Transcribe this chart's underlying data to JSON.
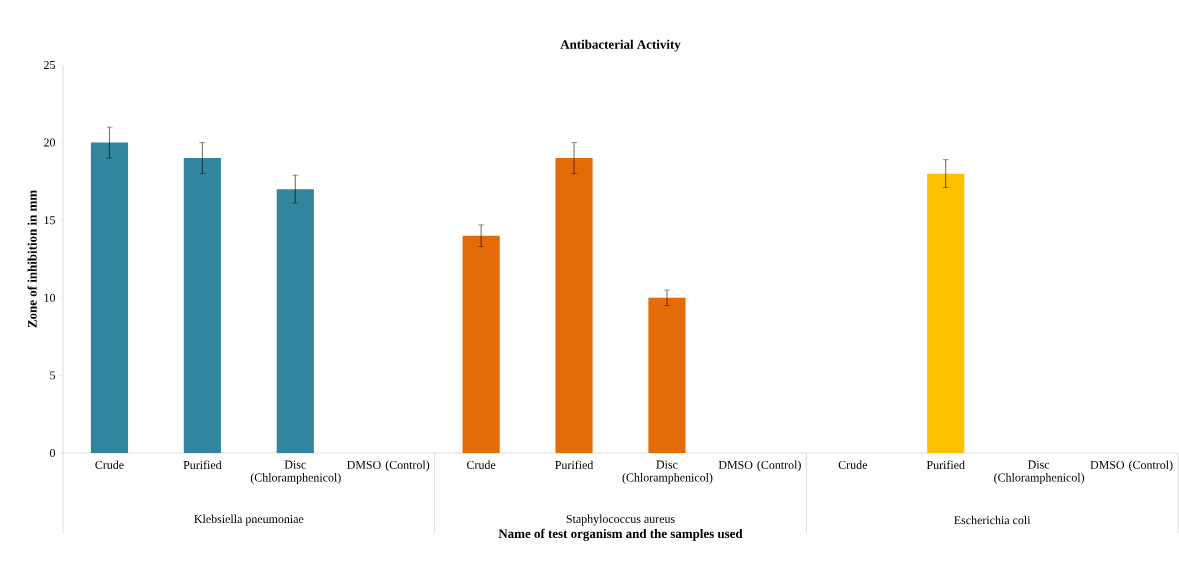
{
  "chart_data": {
    "type": "bar",
    "title": "Antibacterial Activity",
    "xlabel": "Name of test organism and the samples used",
    "ylabel": "Zone of inhibition in mm",
    "categories": [
      "Crude",
      "Purified",
      "Disc (Chloramphenicol)",
      "DMSO (Control)",
      "Crude",
      "Purified",
      "Disc (Chloramphenicol)",
      "DMSO (Control)",
      "Crude",
      "Purified",
      "Disc (Chloramphenicol)",
      "DMSO (Control)"
    ],
    "values": [
      20,
      19,
      17,
      null,
      14,
      19,
      10,
      null,
      null,
      18,
      null,
      null
    ],
    "errors": [
      1,
      1,
      0.9,
      null,
      0.7,
      1,
      0.5,
      null,
      null,
      0.9,
      null,
      null
    ],
    "colors": [
      "#31859c",
      "#31859c",
      "#31859c",
      "#31859c",
      "#e36c09",
      "#e36c09",
      "#e36c09",
      "#e36c09",
      "#ffc000",
      "#ffc000",
      "#ffc000",
      "#ffc000"
    ],
    "ylim": [
      0,
      25
    ],
    "yticks": [
      0,
      5,
      10,
      15,
      20,
      25
    ],
    "grid": false,
    "annotations": [
      "Klebsiella pneumoniae",
      "Staphylococcus aureus",
      "Escherichia coli"
    ]
  }
}
